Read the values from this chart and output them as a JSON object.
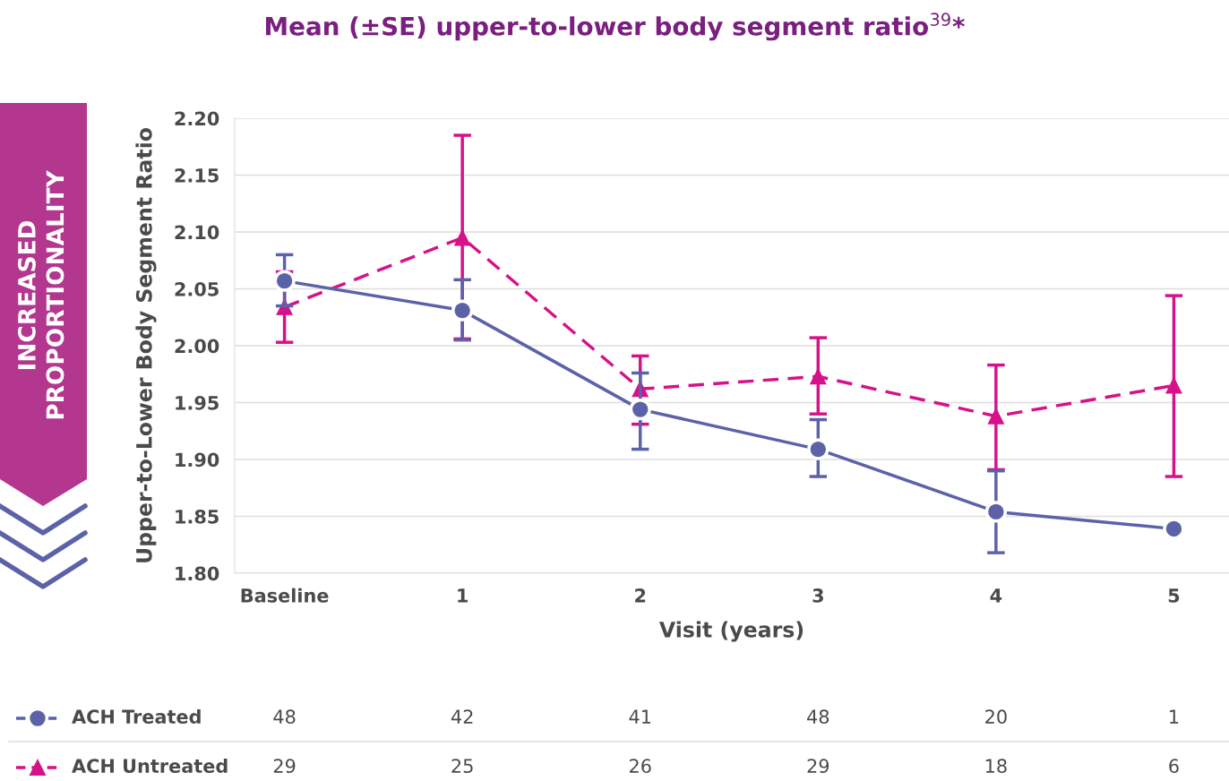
{
  "chart_data": {
    "type": "line",
    "title": "Mean (±SE) upper-to-lower body segment ratio$^{39}$*",
    "xlabel": "Visit (years)",
    "ylabel": "Upper-to-Lower Body Segment Ratio",
    "categories": [
      "Baseline",
      "1",
      "2",
      "3",
      "4",
      "5"
    ],
    "series": [
      {
        "name": "ACH Treated",
        "color": "#5b62a8",
        "marker": "circle",
        "line_style": "solid",
        "values": [
          2.057,
          2.031,
          1.944,
          1.909,
          1.854,
          1.839
        ],
        "errors": [
          [
            2.035,
            2.08
          ],
          [
            2.005,
            2.058
          ],
          [
            1.909,
            1.976
          ],
          [
            1.885,
            1.935
          ],
          [
            1.818,
            1.89
          ],
          null
        ]
      },
      {
        "name": "ACH Untreated",
        "color": "#d6118a",
        "marker": "triangle",
        "line_style": "dashed",
        "values": [
          2.034,
          2.095,
          1.962,
          1.973,
          1.938,
          1.965
        ],
        "errors": [
          [
            2.003,
            2.065
          ],
          [
            2.006,
            2.185
          ],
          [
            1.931,
            1.991
          ],
          [
            1.94,
            2.007
          ],
          [
            1.891,
            1.983
          ],
          [
            1.885,
            2.044
          ]
        ]
      }
    ],
    "ylim": [
      1.8,
      2.2
    ],
    "yticks": [
      {
        "value": 1.8,
        "label": "1.80"
      },
      1.85,
      {
        "value": 1.9,
        "label": "1.90"
      },
      1.95,
      {
        "value": 2.0,
        "label": "2.00"
      },
      2.05,
      {
        "value": 2.1,
        "label": "2.10"
      },
      2.15,
      {
        "value": 2.2,
        "label": "2.20"
      }
    ],
    "grid": "y",
    "legend": "bottom",
    "annotations": [
      "INCREASED\nPROPORTIONALITY",
      "48",
      "42",
      "41",
      "48",
      "20",
      "1",
      "29",
      "25",
      "26",
      "29",
      "18",
      "6"
    ]
  }
}
